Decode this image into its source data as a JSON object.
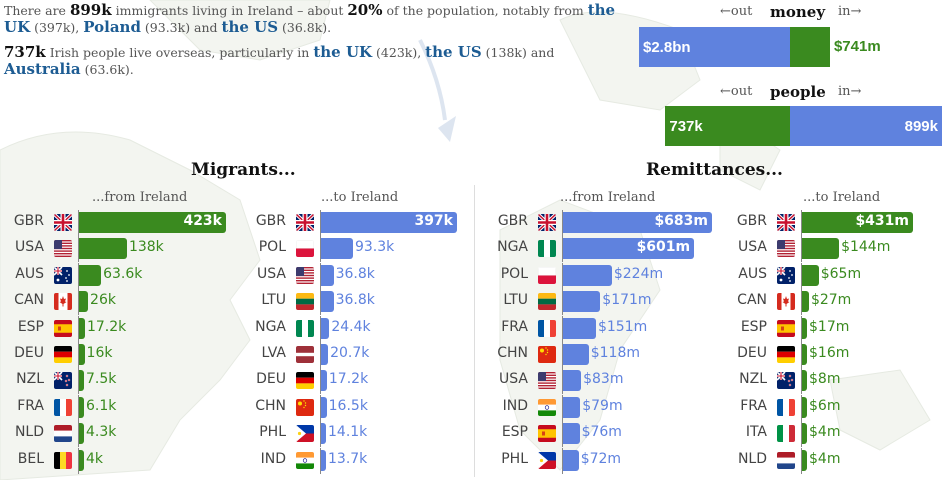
{
  "colors": {
    "green": "#3a8a1f",
    "blue": "#5f82de",
    "link": "#1d5c93"
  },
  "intro": {
    "immigrants": [
      {
        "text": "There are ",
        "style": "plain"
      },
      {
        "text": "899k",
        "style": "bold"
      },
      {
        "text": " immigrants living in Ireland – about ",
        "style": "plain"
      },
      {
        "text": "20%",
        "style": "bold"
      },
      {
        "text": " of the population, notably from ",
        "style": "plain"
      },
      {
        "text": "the UK",
        "style": "link"
      },
      {
        "text": " (397k), ",
        "style": "plain"
      },
      {
        "text": "Poland",
        "style": "link"
      },
      {
        "text": " (93.3k) and ",
        "style": "plain"
      },
      {
        "text": "the US",
        "style": "link"
      },
      {
        "text": " (36.8k).",
        "style": "plain"
      }
    ],
    "emigrants": [
      {
        "text": "737k",
        "style": "bold"
      },
      {
        "text": " Irish people live overseas, particularly in ",
        "style": "plain"
      },
      {
        "text": "the UK",
        "style": "link"
      },
      {
        "text": " (423k), ",
        "style": "plain"
      },
      {
        "text": "the US",
        "style": "link"
      },
      {
        "text": " (138k) and ",
        "style": "plain"
      },
      {
        "text": "Australia",
        "style": "link"
      },
      {
        "text": " (63.6k).",
        "style": "plain"
      }
    ]
  },
  "money": {
    "title": "money",
    "out_label": "←out",
    "in_label": "in→",
    "out_value": 2800,
    "out_text": "$2.8bn",
    "in_value": 741,
    "in_text": "$741m"
  },
  "people": {
    "title": "people",
    "out_label": "←out",
    "in_label": "in→",
    "out_value": 737,
    "out_text": "737k",
    "in_value": 899,
    "in_text": "899k"
  },
  "sections": {
    "migrants": "Migrants...",
    "remittances": "Remittances..."
  },
  "col_headers": {
    "from": "...from Ireland",
    "to": "...to Ireland"
  },
  "chart_data": [
    {
      "type": "bar",
      "title": "Migrants...",
      "subtitle": "...from Ireland",
      "categories": [
        "GBR",
        "USA",
        "AUS",
        "CAN",
        "ESP",
        "DEU",
        "NZL",
        "FRA",
        "NLD",
        "BEL"
      ],
      "values": [
        423,
        138,
        63.6,
        26,
        17.2,
        16,
        7.5,
        6.1,
        4.3,
        4
      ],
      "labels": [
        "423k",
        "138k",
        "63.6k",
        "26k",
        "17.2k",
        "16k",
        "7.5k",
        "6.1k",
        "4.3k",
        "4k"
      ],
      "color": "#3a8a1f"
    },
    {
      "type": "bar",
      "title": "Migrants...",
      "subtitle": "...to Ireland",
      "categories": [
        "GBR",
        "POL",
        "USA",
        "LTU",
        "NGA",
        "LVA",
        "DEU",
        "CHN",
        "PHL",
        "IND"
      ],
      "values": [
        397,
        93.3,
        36.8,
        36.8,
        24.4,
        20.7,
        17.2,
        16.5,
        14.1,
        13.7
      ],
      "labels": [
        "397k",
        "93.3k",
        "36.8k",
        "36.8k",
        "24.4k",
        "20.7k",
        "17.2k",
        "16.5k",
        "14.1k",
        "13.7k"
      ],
      "color": "#5f82de"
    },
    {
      "type": "bar",
      "title": "Remittances...",
      "subtitle": "...from Ireland",
      "categories": [
        "GBR",
        "NGA",
        "POL",
        "LTU",
        "FRA",
        "CHN",
        "USA",
        "IND",
        "ESP",
        "PHL"
      ],
      "values": [
        683,
        601,
        224,
        171,
        151,
        118,
        83,
        79,
        76,
        72
      ],
      "labels": [
        "$683m",
        "$601m",
        "$224m",
        "$171m",
        "$151m",
        "$118m",
        "$83m",
        "$79m",
        "$76m",
        "$72m"
      ],
      "color": "#5f82de"
    },
    {
      "type": "bar",
      "title": "Remittances...",
      "subtitle": "...to Ireland",
      "categories": [
        "GBR",
        "USA",
        "AUS",
        "CAN",
        "ESP",
        "DEU",
        "NZL",
        "FRA",
        "ITA",
        "NLD"
      ],
      "values": [
        431,
        144,
        65,
        27,
        17,
        16,
        8,
        6,
        4,
        4
      ],
      "labels": [
        "$431m",
        "$144m",
        "$65m",
        "$27m",
        "$17m",
        "$16m",
        "$8m",
        "$6m",
        "$4m",
        "$4m"
      ],
      "color": "#3a8a1f"
    }
  ]
}
